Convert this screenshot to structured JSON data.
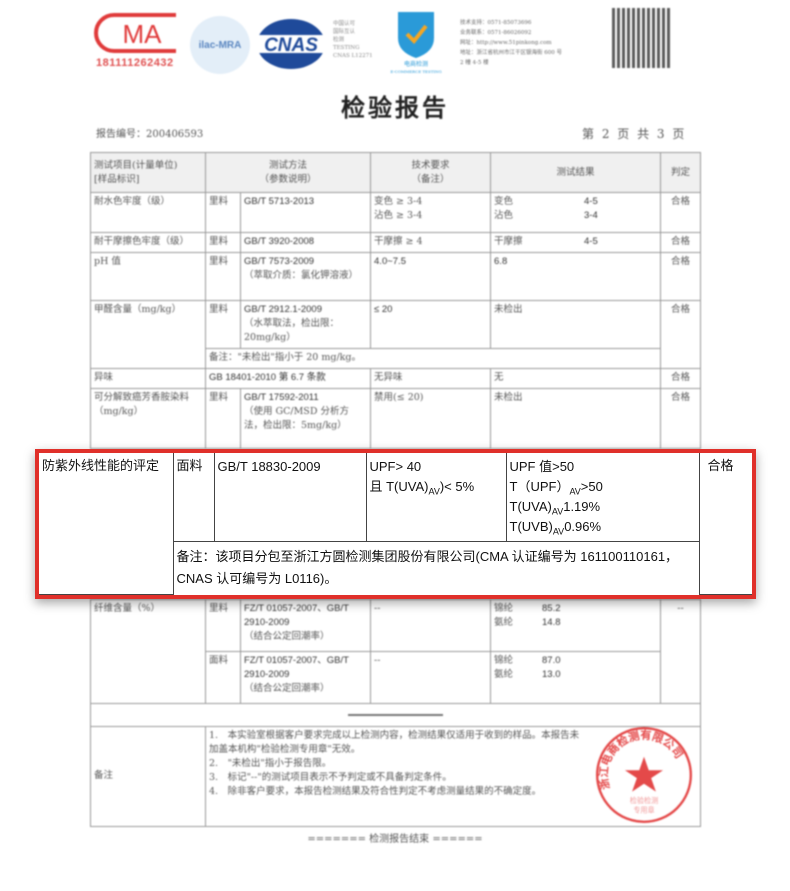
{
  "header": {
    "cma_logo": "CMA",
    "cma_number": "181111262432",
    "ilac_logo": "ilac-MRA",
    "cnas_logo": "CNAS",
    "cnas_text": [
      "中国认可",
      "国际互认",
      "检测",
      "TESTING",
      "CNAS L12271"
    ],
    "ecommerce_logo": "电商检测 E-COMMERCE TESTING",
    "contact": [
      "技术支持：0571-85073696",
      "业务联系：0571-86026092",
      "网址：http://www.51pinkong.com",
      "地址：浙江省杭州市江干区银海街 600 号",
      "2 幢 4-5 楼"
    ],
    "title": "检验报告",
    "report_no": "报告编号：200406593",
    "page": "第 2 页 共 3 页"
  },
  "table": {
    "headers": [
      "测试项目(计量单位)\n[样品标识]",
      "测试方法\n（参数说明）",
      "技术要求\n（备注）",
      "测试结果",
      "判定"
    ],
    "rows": {
      "water": {
        "item": "耐水色牢度（级）",
        "mat": "里料",
        "method": "GB/T 5713-2013",
        "req1": "变色 ≥ 3-4",
        "req2": "沾色 ≥ 3-4",
        "r1l": "变色",
        "r1v": "4-5",
        "r2l": "沾色",
        "r2v": "3-4",
        "verdict": "合格"
      },
      "dry": {
        "item": "耐干摩擦色牢度（级）",
        "mat": "里料",
        "method": "GB/T 3920-2008",
        "req": "干摩擦 ≥ 4",
        "rl": "干摩擦",
        "rv": "4-5",
        "verdict": "合格"
      },
      "ph": {
        "item": "pH 值",
        "mat": "里料",
        "method": "GB/T 7573-2009",
        "note": "（萃取介质：氯化钾溶液）",
        "req": "4.0~7.5",
        "result": "6.8",
        "verdict": "合格"
      },
      "formaldehyde": {
        "item": "甲醛含量（mg/kg）",
        "mat": "里料",
        "method": "GB/T 2912.1-2009",
        "note": "（水萃取法，检出限：20mg/kg）",
        "req": "≤ 20",
        "result": "未检出",
        "verdict": "合格",
        "remark": "备注：\"未检出\"指小于 20 mg/kg。"
      },
      "odor": {
        "item": "异味",
        "method": "GB 18401-2010 第 6.7 条款",
        "req": "无异味",
        "result": "无",
        "verdict": "合格"
      },
      "amine": {
        "item": "可分解致癌芳香胺染料（mg/kg）",
        "mat": "里料",
        "method": "GB/T 17592-2011",
        "note": "（使用 GC/MSD 分析方法，检出限：5mg/kg）",
        "req": "禁用(≤ 20)",
        "result": "未检出",
        "verdict": "合格"
      },
      "fiber1": {
        "item": "纤维含量（%）",
        "mat": "里料",
        "method": "FZ/T 01057-2007、GB/T 2910-2009",
        "note": "（结合公定回潮率）",
        "req": "--",
        "r1l": "锦纶",
        "r1v": "85.2",
        "r2l": "氨纶",
        "r2v": "14.8",
        "verdict": "--"
      },
      "fiber2": {
        "mat": "面料",
        "method": "FZ/T 01057-2007、GB/T 2910-2009",
        "note": "（结合公定回潮率）",
        "req": "--",
        "r1l": "锦纶",
        "r1v": "87.0",
        "r2l": "氨纶",
        "r2v": "13.0"
      }
    },
    "notes_label": "备注",
    "notes": [
      "1.　本实验室根据客户要求完成以上检测内容，检测结果仅适用于收到的样品。本报告未加盖本机构\"检验检测专用章\"无效。",
      "2.　\"未检出\"指小于报告限。",
      "3.　标记\"--\"的测试项目表示不予判定或不具备判定条件。",
      "4.　除非客户要求，本报告检测结果及符合性判定不考虑测量结果的不确定度。"
    ],
    "end": "======= 检测报告结束 ======"
  },
  "stamp": {
    "text": "浙江电商检测有限公司",
    "sub": "检验检测专用章",
    "color": "#e02a2a"
  },
  "highlight": {
    "color": "#e0302a",
    "item": "防紫外线性能的评定",
    "mat": "面料",
    "method": "GB/T 18830-2009",
    "req1": "UPF> 40",
    "req2_pre": "且 T(UVA)",
    "req2_sub": "AV",
    "req2_post": ")< 5%",
    "res1": "UPF 值>50",
    "res2_pre": "T（UPF）",
    "res2_sub": "AV",
    "res2_post": ">50",
    "res3_pre": "T(UVA)",
    "res3_sub": "AV",
    "res3_post": "1.19%",
    "res4_pre": "T(UVB)",
    "res4_sub": "AV",
    "res4_post": "0.96%",
    "verdict": "合格",
    "remark": "备注：该项目分包至浙江方圆检测集团股份有限公司(CMA 认证编号为 161100110161，CNAS 认可编号为 L0116)。"
  }
}
